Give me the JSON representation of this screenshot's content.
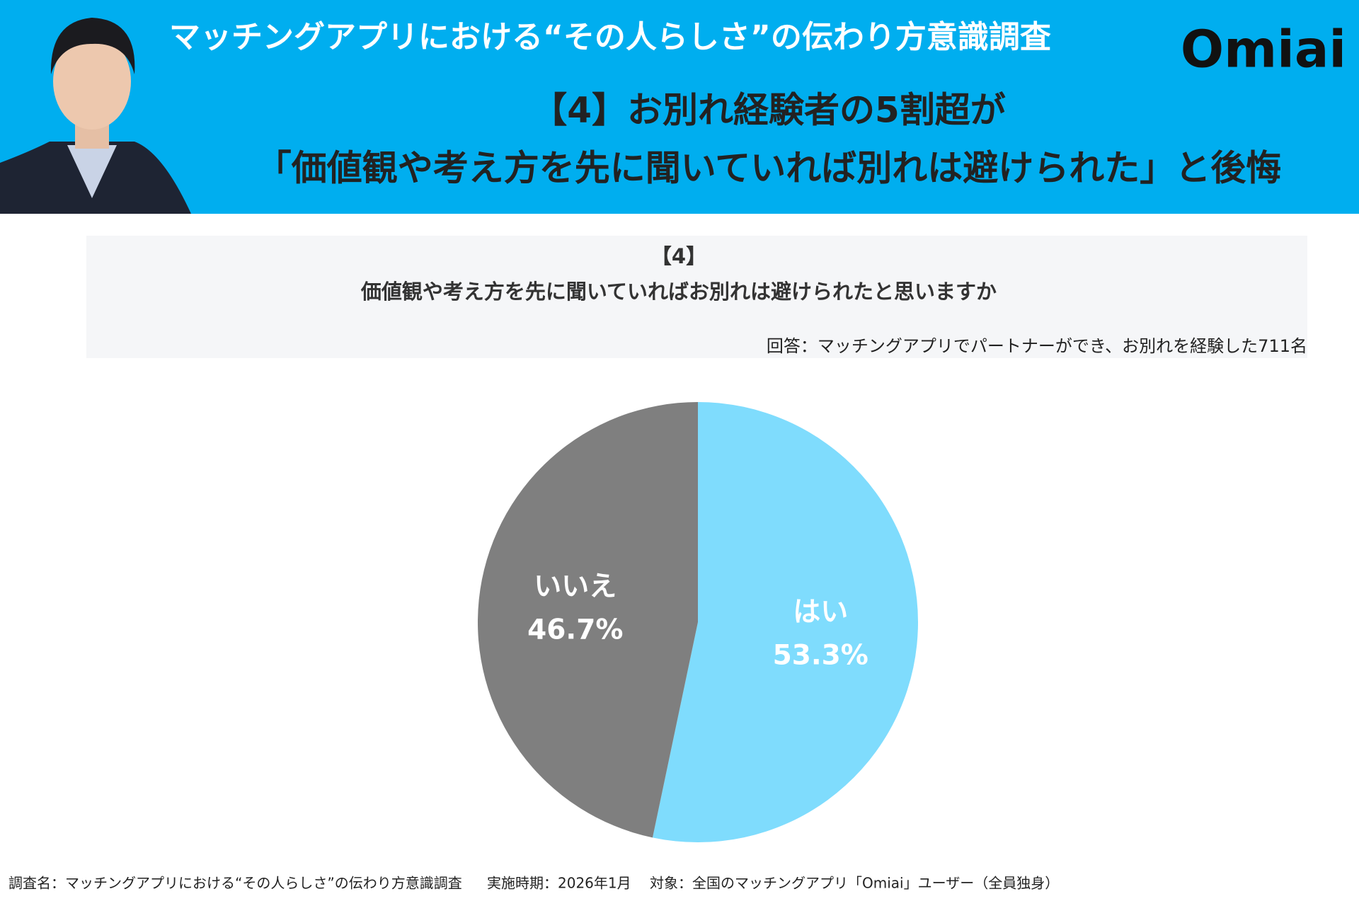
{
  "header": {
    "survey_title": "マッチングアプリにおける“その人らしさ”の伝わり方意識調査",
    "logo": "Omiai",
    "headline_lines": [
      "【4】お別れ経験者の5割超が",
      "「価値観や考え方を先に聞いていれば別れは避けられた」と後悔"
    ]
  },
  "chart_data": {
    "type": "pie",
    "question_number": "【4】",
    "title": "価値観や考え方を先に聞いていればお別れは避けられたと思いますか",
    "subtitle": "回答：マッチングアプリでパートナーができ、お別れを経験した711名",
    "categories": [
      "はい",
      "いいえ"
    ],
    "values": [
      53.3,
      46.7
    ],
    "value_labels": [
      "53.3%",
      "46.7%"
    ],
    "colors": [
      "#7fdcfd",
      "#7f7f7f"
    ]
  },
  "footer": [
    "調査名：マッチングアプリにおける“その人らしさ”の伝わり方意識調査",
    "実施時期：2026年1月",
    "対象：全国のマッチングアプリ「Omiai」ユーザー（全員独身）"
  ]
}
